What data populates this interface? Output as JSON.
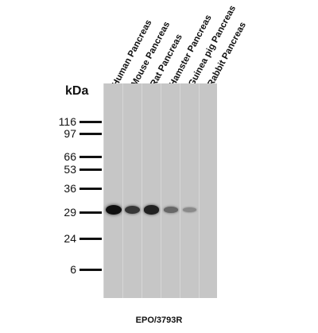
{
  "lanes": [
    {
      "label": "Human Pancreas",
      "band_intensity": 1.0
    },
    {
      "label": "Mouse Pancreas",
      "band_intensity": 0.78
    },
    {
      "label": "Rat Pancreas",
      "band_intensity": 0.9
    },
    {
      "label": "Hamster Pancreas",
      "band_intensity": 0.5
    },
    {
      "label": "Guinea pig Pancreas",
      "band_intensity": 0.3
    },
    {
      "label": "Rabbit Pancreas",
      "band_intensity": 0.0
    }
  ],
  "unit_label": "kDa",
  "markers": [
    "116",
    "97",
    "66",
    "53",
    "36",
    "29",
    "24",
    "6"
  ],
  "antibody": "EPO/3793R",
  "colors": {
    "membrane": "#c8c8c8",
    "band": "#111111",
    "text": "#111111"
  }
}
